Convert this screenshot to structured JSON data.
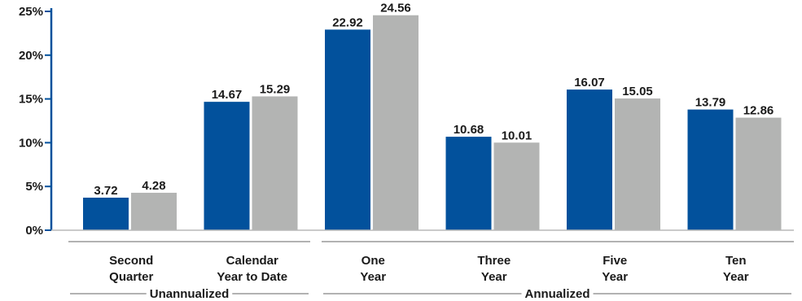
{
  "chart_data": {
    "type": "bar",
    "categories": [
      [
        "Second",
        "Quarter"
      ],
      [
        "Calendar",
        "Year to Date"
      ],
      [
        "One",
        "Year"
      ],
      [
        "Three",
        "Year"
      ],
      [
        "Five",
        "Year"
      ],
      [
        "Ten",
        "Year"
      ]
    ],
    "series": [
      {
        "color": "#02519C",
        "values": [
          3.72,
          14.67,
          22.92,
          10.68,
          16.07,
          13.79
        ],
        "labels": [
          "3.72",
          "14.67",
          "22.92",
          "10.68",
          "16.07",
          "13.79"
        ]
      },
      {
        "color": "#B3B4B3",
        "values": [
          4.28,
          15.29,
          24.56,
          10.01,
          15.05,
          12.86
        ],
        "labels": [
          "4.28",
          "15.29",
          "24.56",
          "10.01",
          "15.05",
          "12.86"
        ]
      }
    ],
    "y_ticks": [
      0,
      5,
      10,
      15,
      20,
      25
    ],
    "y_tick_labels": [
      "0%",
      "5%",
      "10%",
      "15%",
      "20%",
      "25%"
    ],
    "ylim": [
      0,
      25
    ],
    "groups": [
      {
        "label": "Unannualized",
        "categories": [
          0,
          1
        ]
      },
      {
        "label": "Annualized",
        "categories": [
          2,
          3,
          4,
          5
        ]
      }
    ],
    "axis_color": "#02519C",
    "grid": false,
    "legend": "none"
  }
}
